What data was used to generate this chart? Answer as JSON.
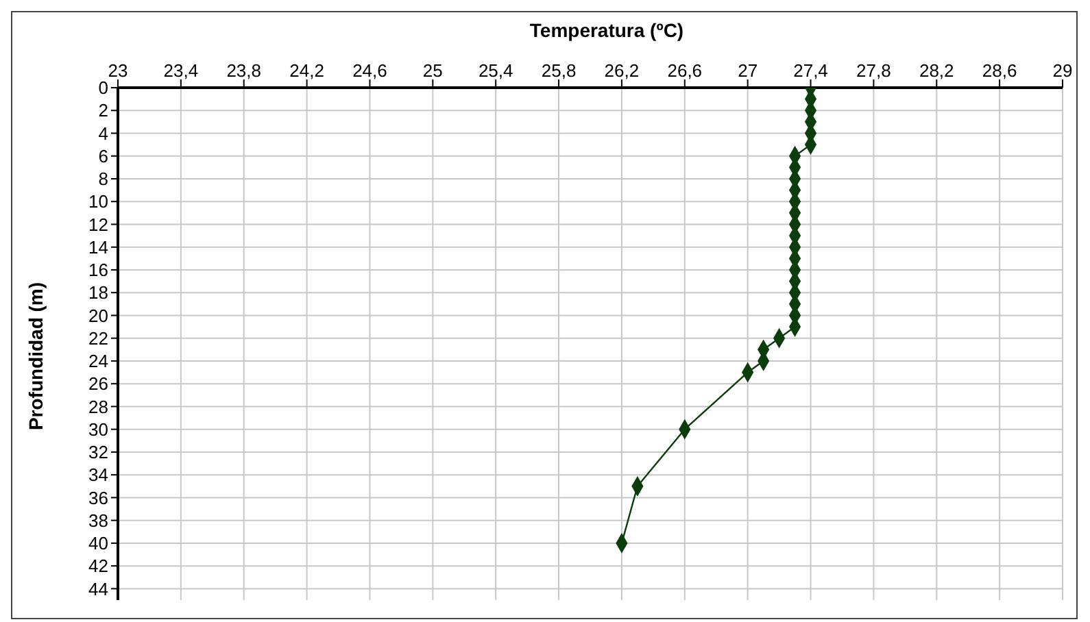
{
  "chart_data": {
    "type": "line",
    "xlabel": "Temperatura (ºC)",
    "ylabel": "Profundidad (m)",
    "x": [
      27.4,
      27.4,
      27.4,
      27.4,
      27.4,
      27.4,
      27.3,
      27.3,
      27.3,
      27.3,
      27.3,
      27.3,
      27.3,
      27.3,
      27.3,
      27.3,
      27.3,
      27.3,
      27.3,
      27.3,
      27.3,
      27.3,
      27.2,
      27.1,
      27.1,
      27.0,
      26.6,
      26.3,
      26.2
    ],
    "series": [
      {
        "color": "#0b3d0b",
        "values": [
          0,
          1,
          2,
          3,
          4,
          5,
          6,
          7,
          8,
          9,
          10,
          11,
          12,
          13,
          14,
          15,
          16,
          17,
          18,
          19,
          20,
          21,
          22,
          23,
          24,
          25,
          30,
          35,
          40
        ]
      }
    ],
    "xlim": [
      23,
      29
    ],
    "xticks": [
      23,
      {
        "value": 23.4,
        "label": "23,4"
      },
      {
        "value": 23.8,
        "label": "23,8"
      },
      {
        "value": 24.2,
        "label": "24,2"
      },
      {
        "value": 24.6,
        "label": "24,6"
      },
      25,
      {
        "value": 25.4,
        "label": "25,4"
      },
      {
        "value": 25.8,
        "label": "25,8"
      },
      {
        "value": 26.2,
        "label": "26,2"
      },
      {
        "value": 26.6,
        "label": "26,6"
      },
      27,
      {
        "value": 27.4,
        "label": "27,4"
      },
      {
        "value": 27.8,
        "label": "27,8"
      },
      {
        "value": 28.2,
        "label": "28,2"
      },
      {
        "value": 28.6,
        "label": "28,6"
      },
      29
    ],
    "ylim": [
      45,
      0
    ],
    "yticks": [
      0,
      2,
      4,
      6,
      8,
      10,
      12,
      14,
      16,
      18,
      20,
      22,
      24,
      26,
      28,
      30,
      32,
      34,
      36,
      38,
      40,
      42,
      44
    ],
    "grid": true,
    "marker": "diamond",
    "line_style": "solid",
    "legend": false
  }
}
